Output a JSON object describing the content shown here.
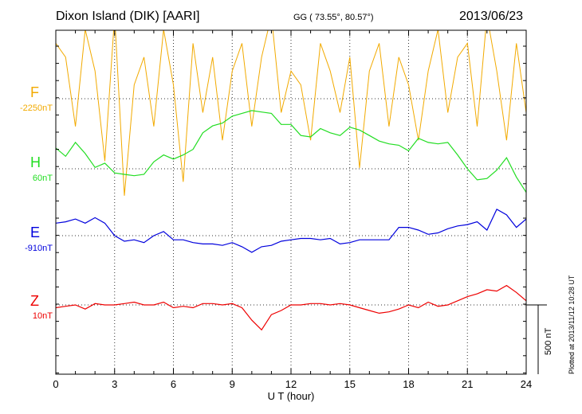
{
  "header": {
    "station": "Dixon Island (DIK)  [AARI]",
    "coords": "GG ( 73.55°,  80.57°)",
    "date": "2013/06/23"
  },
  "channels": [
    {
      "letter": "F",
      "offset": "-2250nT",
      "color": "#f2aa00"
    },
    {
      "letter": "H",
      "offset": "60nT",
      "color": "#22dd22"
    },
    {
      "letter": "E",
      "offset": "-910nT",
      "color": "#0000dd"
    },
    {
      "letter": "Z",
      "offset": "10nT",
      "color": "#ee0000"
    }
  ],
  "scale_label": "500 nT",
  "footer": "Plotted at 2013/11/12 10:28 UT",
  "chart_data": {
    "type": "line",
    "xlabel": "U T (hour)",
    "xlim": [
      0,
      24
    ],
    "x_ticks": [
      "0",
      "3",
      "6",
      "9",
      "12",
      "15",
      "18",
      "21",
      "24"
    ],
    "ylabel": "",
    "series": [
      {
        "name": "H",
        "x": [
          0,
          0.5,
          1,
          1.5,
          2,
          2.5,
          3,
          3.5,
          4,
          4.5,
          5,
          5.5,
          6,
          6.5,
          7,
          7.5,
          8,
          8.5,
          9,
          9.5,
          10,
          10.5,
          11,
          11.5,
          12,
          12.5,
          13,
          13.5,
          14,
          14.5,
          15,
          15.5,
          16,
          16.5,
          17,
          17.5,
          18,
          18.5,
          19,
          19.5,
          20,
          20.5,
          21,
          21.5,
          22,
          22.5,
          23,
          23.5,
          24
        ],
        "values": [
          150,
          90,
          190,
          110,
          10,
          40,
          -30,
          -40,
          -50,
          -40,
          50,
          100,
          70,
          100,
          140,
          260,
          310,
          330,
          380,
          400,
          420,
          410,
          400,
          320,
          320,
          240,
          230,
          290,
          260,
          240,
          300,
          280,
          240,
          200,
          180,
          170,
          130,
          220,
          190,
          180,
          190,
          100,
          0,
          -80,
          -70,
          -10,
          80,
          -60,
          -170
        ]
      },
      {
        "name": "E",
        "x": [
          0,
          0.5,
          1,
          1.5,
          2,
          2.5,
          3,
          3.5,
          4,
          4.5,
          5,
          5.5,
          6,
          6.5,
          7,
          7.5,
          8,
          8.5,
          9,
          9.5,
          10,
          10.5,
          11,
          11.5,
          12,
          12.5,
          13,
          13.5,
          14,
          14.5,
          15,
          15.5,
          16,
          16.5,
          17,
          17.5,
          18,
          18.5,
          19,
          19.5,
          20,
          20.5,
          21,
          21.5,
          22,
          22.5,
          23,
          23.5,
          24
        ],
        "values": [
          90,
          100,
          120,
          90,
          130,
          90,
          0,
          -40,
          -30,
          -50,
          0,
          30,
          -30,
          -30,
          -50,
          -60,
          -60,
          -70,
          -50,
          -80,
          -120,
          -80,
          -70,
          -40,
          -30,
          -20,
          -20,
          -30,
          -20,
          -60,
          -50,
          -30,
          -30,
          -30,
          -30,
          60,
          60,
          40,
          10,
          20,
          50,
          70,
          80,
          100,
          40,
          190,
          150,
          60,
          120
        ]
      },
      {
        "name": "Z",
        "x": [
          0,
          0.5,
          1,
          1.5,
          2,
          2.5,
          3,
          3.5,
          4,
          4.5,
          5,
          5.5,
          6,
          6.5,
          7,
          7.5,
          8,
          8.5,
          9,
          9.5,
          10,
          10.5,
          11,
          11.5,
          12,
          12.5,
          13,
          13.5,
          14,
          14.5,
          15,
          15.5,
          16,
          16.5,
          17,
          17.5,
          18,
          18.5,
          19,
          19.5,
          20,
          20.5,
          21,
          21.5,
          22,
          22.5,
          23,
          23.5,
          24
        ],
        "values": [
          -20,
          -10,
          0,
          -30,
          10,
          0,
          0,
          10,
          20,
          0,
          0,
          20,
          -20,
          -10,
          -20,
          10,
          10,
          0,
          10,
          -20,
          -110,
          -180,
          -70,
          -40,
          0,
          0,
          10,
          10,
          0,
          10,
          0,
          -20,
          -40,
          -60,
          -50,
          -30,
          0,
          -20,
          20,
          -10,
          0,
          30,
          60,
          80,
          110,
          100,
          140,
          90,
          30
        ]
      },
      {
        "name": "F",
        "x": [
          0,
          0.5,
          1,
          1.5,
          2,
          2.5,
          3,
          3.5,
          4,
          4.5,
          5,
          5.5,
          6,
          6.5,
          7,
          7.5,
          8,
          8.5,
          9,
          9.5,
          10,
          10.5,
          11,
          11.5,
          12,
          12.5,
          13,
          13.5,
          14,
          14.5,
          15,
          15.5,
          16,
          16.5,
          17,
          17.5,
          18,
          18.5,
          19,
          19.5,
          20,
          20.5,
          21,
          21.5,
          22,
          22.5,
          23,
          23.5,
          24
        ],
        "values": [
          400,
          300,
          -200,
          500,
          200,
          -450,
          600,
          -700,
          100,
          300,
          -200,
          500,
          100,
          -600,
          400,
          -100,
          300,
          -300,
          200,
          400,
          -200,
          300,
          600,
          -100,
          200,
          100,
          -300,
          400,
          200,
          -100,
          300,
          -500,
          200,
          400,
          -200,
          300,
          100,
          -300,
          200,
          500,
          -100,
          300,
          400,
          -200,
          600,
          200,
          -300,
          400,
          -100
        ]
      }
    ]
  }
}
